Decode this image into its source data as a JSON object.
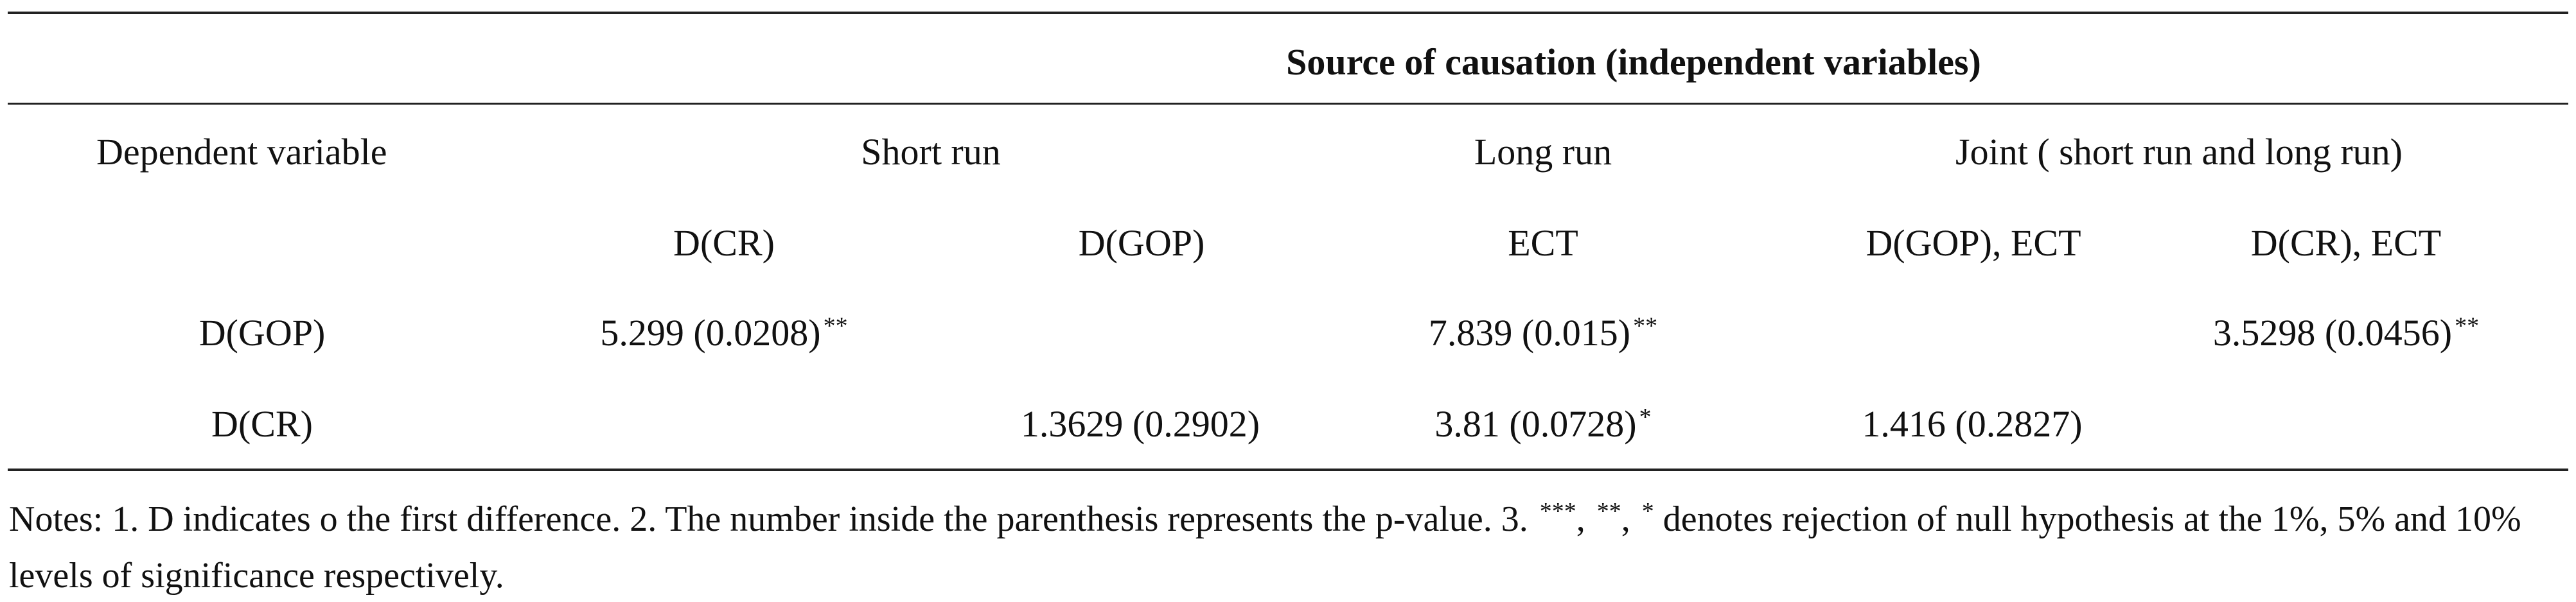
{
  "table": {
    "group_header": "Source of causation (independent variables)",
    "dependent_label": "Dependent variable",
    "short_run_label": "Short run",
    "long_run_label": "Long run",
    "joint_label": "Joint ( short run and long run)",
    "sub_headers": [
      "D(CR)",
      "D(GOP)",
      "ECT",
      "D(GOP), ECT",
      "D(CR), ECT"
    ],
    "rows": [
      {
        "dependent": "D(GOP)",
        "short_cr": "5.299 (0.0208)",
        "short_cr_sig": "**",
        "short_gop": "",
        "short_gop_sig": "",
        "long_ect": "7.839 (0.015)",
        "long_ect_sig": "**",
        "joint_gop_ect": "",
        "joint_gop_ect_sig": "",
        "joint_cr_ect": "3.5298 (0.0456)",
        "joint_cr_ect_sig": "**"
      },
      {
        "dependent": "D(CR)",
        "short_cr": "",
        "short_cr_sig": "",
        "short_gop": "1.3629 (0.2902)",
        "short_gop_sig": "",
        "long_ect": "3.81 (0.0728)",
        "long_ect_sig": "*",
        "joint_gop_ect": "1.416 (0.2827)",
        "joint_gop_ect_sig": "",
        "joint_cr_ect": "",
        "joint_cr_ect_sig": ""
      }
    ]
  },
  "notes": {
    "part1": "Notes: 1. D indicates o the first difference. 2. The number inside the parenthesis represents the p-value. 3. ",
    "sym1": "***",
    "sep1": ", ",
    "sym2": "**",
    "sep2": ", ",
    "sym3": "*",
    "part2": " denotes rejection of null hypothesis at the 1%, 5% and 10% levels of significance respectively."
  }
}
